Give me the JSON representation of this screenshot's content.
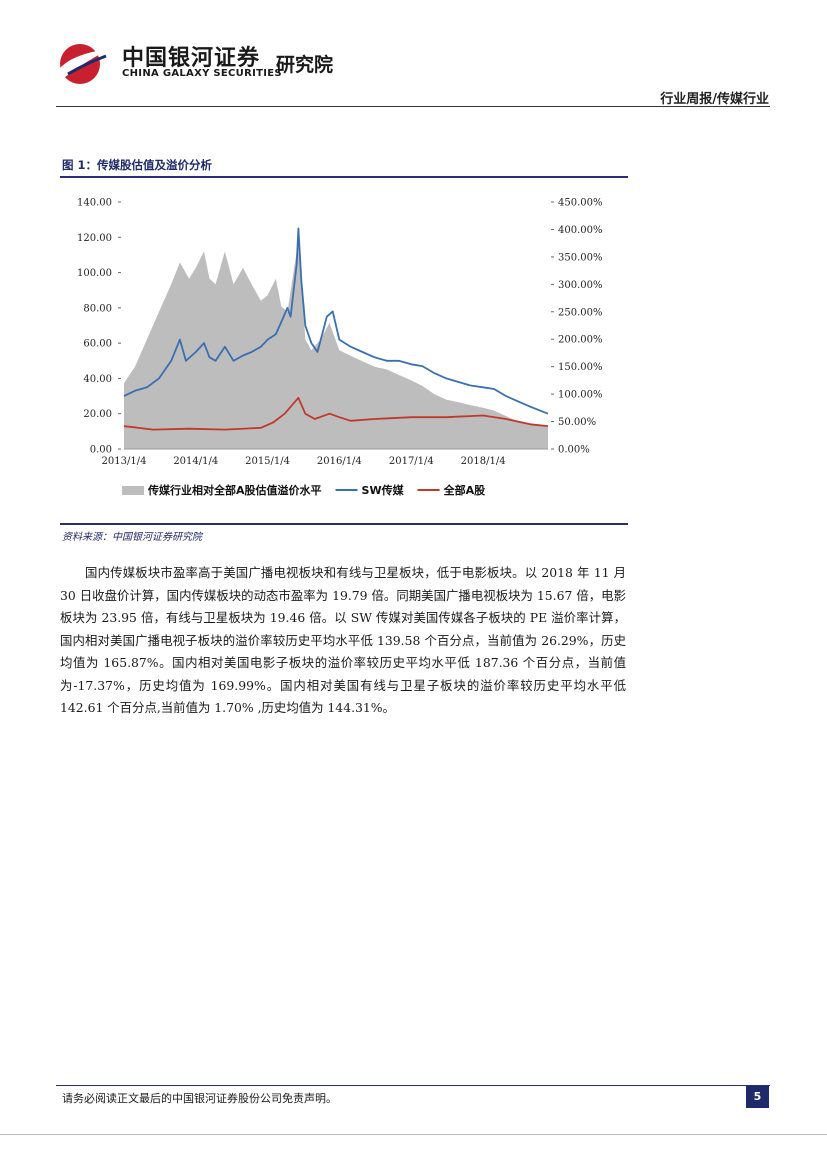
{
  "header": {
    "logo_cn": "中国银河证券",
    "logo_en": "CHINA GALAXY SECURITIES",
    "institute": "研究院",
    "report_type": "行业周报/传媒行业"
  },
  "figure": {
    "title": "图 1：传媒股估值及溢价分析",
    "source": "资料来源：中国银河证券研究院"
  },
  "paragraph": "国内传媒板块市盈率高于美国广播电视板块和有线与卫星板块，低于电影板块。以 2018 年 11 月 30 日收盘价计算，国内传媒板块的动态市盈率为 19.79 倍。同期美国广播电视板块为 15.67 倍，电影板块为 23.95 倍，有线与卫星板块为 19.46 倍。以 SW 传媒对美国传媒各子板块的 PE 溢价率计算，国内相对美国广播电视子板块的溢价率较历史平均水平低 139.58 个百分点，当前值为 26.29%，历史均值为 165.87%。国内相对美国电影子板块的溢价率较历史平均水平低 187.36 个百分点，当前值为-17.37%，历史均值为 169.99%。国内相对美国有线与卫星子板块的溢价率较历史平均水平低 142.61 个百分点,当前值为 1.70% ,历史均值为 144.31%。",
  "footer": {
    "disclaimer": "请务必阅读正文最后的中国银河证券股份公司免责声明。",
    "page_number": "5"
  },
  "colors": {
    "brand_red": "#c8202f",
    "navy": "#1f2a6b",
    "premium_fill": "#bdbdbd",
    "sw_line": "#3a6fb0",
    "all_a_line": "#c0392b"
  },
  "chart_data": {
    "type": "line",
    "x_tick_labels": [
      "2013/1/4",
      "2014/1/4",
      "2015/1/4",
      "2016/1/4",
      "2017/1/4",
      "2018/1/4"
    ],
    "x_range": [
      "2013-01-04",
      "2018-11-30"
    ],
    "y_left_ticks": [
      "0.00",
      "20.00",
      "40.00",
      "60.00",
      "80.00",
      "100.00",
      "120.00",
      "140.00"
    ],
    "y_left_range": [
      0,
      140
    ],
    "y_right_ticks": [
      "0.00%",
      "50.00%",
      "100.00%",
      "150.00%",
      "200.00%",
      "250.00%",
      "300.00%",
      "350.00%",
      "400.00%",
      "450.00%"
    ],
    "y_right_range": [
      0,
      450
    ],
    "legend_position": "bottom",
    "series": [
      {
        "name": "传媒行业相对全部A股估值溢价水平",
        "kind": "area",
        "axis": "right",
        "points": [
          [
            "2013-01-04",
            120
          ],
          [
            "2013-03-01",
            150
          ],
          [
            "2013-05-01",
            200
          ],
          [
            "2013-07-01",
            250
          ],
          [
            "2013-09-01",
            300
          ],
          [
            "2013-10-15",
            340
          ],
          [
            "2013-12-01",
            310
          ],
          [
            "2014-01-04",
            330
          ],
          [
            "2014-02-15",
            360
          ],
          [
            "2014-03-15",
            310
          ],
          [
            "2014-04-15",
            300
          ],
          [
            "2014-06-01",
            360
          ],
          [
            "2014-07-15",
            300
          ],
          [
            "2014-09-01",
            330
          ],
          [
            "2014-10-15",
            300
          ],
          [
            "2014-12-01",
            270
          ],
          [
            "2015-01-04",
            280
          ],
          [
            "2015-02-15",
            310
          ],
          [
            "2015-03-15",
            260
          ],
          [
            "2015-04-15",
            250
          ],
          [
            "2015-05-15",
            320
          ],
          [
            "2015-06-10",
            380
          ],
          [
            "2015-06-25",
            310
          ],
          [
            "2015-07-15",
            200
          ],
          [
            "2015-08-15",
            180
          ],
          [
            "2015-10-01",
            200
          ],
          [
            "2015-11-15",
            230
          ],
          [
            "2016-01-04",
            180
          ],
          [
            "2016-03-01",
            170
          ],
          [
            "2016-05-01",
            160
          ],
          [
            "2016-07-01",
            150
          ],
          [
            "2016-09-01",
            145
          ],
          [
            "2016-11-01",
            135
          ],
          [
            "2017-01-04",
            125
          ],
          [
            "2017-03-01",
            115
          ],
          [
            "2017-05-01",
            100
          ],
          [
            "2017-07-01",
            90
          ],
          [
            "2017-09-01",
            85
          ],
          [
            "2017-11-01",
            80
          ],
          [
            "2018-01-04",
            75
          ],
          [
            "2018-03-01",
            70
          ],
          [
            "2018-05-01",
            60
          ],
          [
            "2018-07-01",
            50
          ],
          [
            "2018-09-01",
            45
          ],
          [
            "2018-11-30",
            40
          ]
        ]
      },
      {
        "name": "SW传媒",
        "kind": "line",
        "axis": "left",
        "points": [
          [
            "2013-01-04",
            30
          ],
          [
            "2013-03-01",
            33
          ],
          [
            "2013-05-01",
            35
          ],
          [
            "2013-07-01",
            40
          ],
          [
            "2013-09-01",
            50
          ],
          [
            "2013-10-15",
            62
          ],
          [
            "2013-11-15",
            50
          ],
          [
            "2014-01-04",
            55
          ],
          [
            "2014-02-15",
            60
          ],
          [
            "2014-03-15",
            52
          ],
          [
            "2014-04-15",
            50
          ],
          [
            "2014-06-01",
            58
          ],
          [
            "2014-07-15",
            50
          ],
          [
            "2014-09-01",
            53
          ],
          [
            "2014-10-15",
            55
          ],
          [
            "2014-12-01",
            58
          ],
          [
            "2015-01-04",
            62
          ],
          [
            "2015-02-15",
            65
          ],
          [
            "2015-03-15",
            72
          ],
          [
            "2015-04-15",
            80
          ],
          [
            "2015-05-01",
            75
          ],
          [
            "2015-06-01",
            105
          ],
          [
            "2015-06-10",
            125
          ],
          [
            "2015-06-25",
            95
          ],
          [
            "2015-07-15",
            70
          ],
          [
            "2015-08-15",
            60
          ],
          [
            "2015-09-15",
            55
          ],
          [
            "2015-11-01",
            75
          ],
          [
            "2015-12-01",
            78
          ],
          [
            "2016-01-04",
            62
          ],
          [
            "2016-03-01",
            58
          ],
          [
            "2016-05-01",
            55
          ],
          [
            "2016-07-01",
            52
          ],
          [
            "2016-09-01",
            50
          ],
          [
            "2016-11-01",
            50
          ],
          [
            "2017-01-04",
            48
          ],
          [
            "2017-03-01",
            47
          ],
          [
            "2017-05-01",
            43
          ],
          [
            "2017-07-01",
            40
          ],
          [
            "2017-09-01",
            38
          ],
          [
            "2017-11-01",
            36
          ],
          [
            "2018-01-04",
            35
          ],
          [
            "2018-03-01",
            34
          ],
          [
            "2018-05-01",
            30
          ],
          [
            "2018-07-01",
            27
          ],
          [
            "2018-09-01",
            24
          ],
          [
            "2018-11-30",
            20
          ]
        ]
      },
      {
        "name": "全部A股",
        "kind": "line",
        "axis": "left",
        "points": [
          [
            "2013-01-04",
            13
          ],
          [
            "2013-06-01",
            11
          ],
          [
            "2013-12-01",
            11.5
          ],
          [
            "2014-06-01",
            11
          ],
          [
            "2014-12-01",
            12
          ],
          [
            "2015-02-01",
            15
          ],
          [
            "2015-04-01",
            20
          ],
          [
            "2015-06-10",
            29
          ],
          [
            "2015-07-15",
            20
          ],
          [
            "2015-09-01",
            17
          ],
          [
            "2015-11-15",
            20
          ],
          [
            "2016-01-04",
            18
          ],
          [
            "2016-03-01",
            16
          ],
          [
            "2016-07-01",
            17
          ],
          [
            "2017-01-04",
            18
          ],
          [
            "2017-07-01",
            18
          ],
          [
            "2018-01-04",
            19
          ],
          [
            "2018-05-01",
            17
          ],
          [
            "2018-09-01",
            14
          ],
          [
            "2018-11-30",
            13
          ]
        ]
      }
    ]
  }
}
